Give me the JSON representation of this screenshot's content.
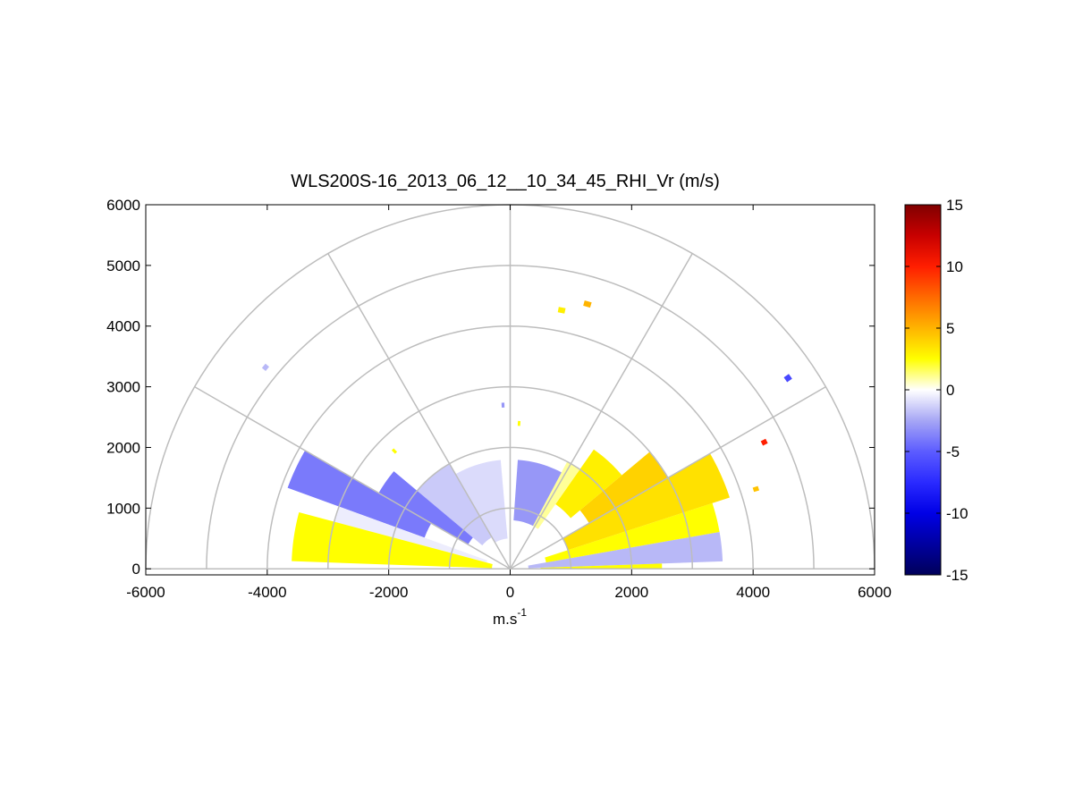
{
  "chart_data": {
    "type": "polar_rhi",
    "title": "WLS200S-16_2013_06_12__10_34_45_RHI_Vr (m/s)",
    "xlabel": {
      "base": "m.s",
      "superscript": "-1"
    },
    "xlim": [
      -6000,
      6000
    ],
    "xticks": [
      -6000,
      -4000,
      -2000,
      0,
      2000,
      4000,
      6000
    ],
    "ylim": [
      -100,
      6000
    ],
    "yticks": [
      0,
      1000,
      2000,
      3000,
      4000,
      5000,
      6000
    ],
    "polar_rings": [
      1000,
      2000,
      3000,
      4000,
      5000,
      6000
    ],
    "polar_spokes": [
      0,
      30,
      60,
      90,
      120,
      150,
      180
    ],
    "grid_color": "#bdbdbd",
    "clim": [
      -15,
      15
    ],
    "cticks": [
      -15,
      -10,
      -5,
      0,
      5,
      10,
      15
    ],
    "colormap": [
      "#00005a",
      "#0000a0",
      "#0000e6",
      "#2a2aff",
      "#5c5cff",
      "#a6a6f5",
      "#ffffff",
      "#ffff00",
      "#ffb400",
      "#ff6a00",
      "#ff1e00",
      "#c80000",
      "#800000"
    ],
    "cells": {
      "elevation_start": [
        0,
        2,
        10,
        18,
        30,
        40,
        55,
        62,
        95,
        120,
        140,
        150,
        160,
        165,
        73,
        78,
        34,
        26,
        17.5,
        140,
        92,
        134,
        86
      ],
      "elevation_end": [
        2,
        10,
        18,
        30,
        40,
        55,
        62,
        86,
        120,
        140,
        150,
        160,
        165,
        178,
        74.5,
        79.5,
        35,
        27,
        18.5,
        141,
        93,
        135,
        87
      ],
      "range_start": [
        500,
        300,
        600,
        1000,
        1500,
        1300,
        800,
        800,
        500,
        600,
        800,
        1500,
        400,
        300,
        4500,
        4300,
        5500,
        4630,
        4210,
        5180,
        2660,
        2680,
        2360
      ],
      "range_end": [
        2500,
        3500,
        3500,
        3800,
        3000,
        2400,
        2000,
        1800,
        1800,
        2000,
        2500,
        3900,
        3000,
        3600,
        4590,
        4390,
        5600,
        4720,
        4300,
        5260,
        2740,
        2760,
        2440
      ],
      "values": [
        2.5,
        -2,
        2.5,
        3.5,
        4,
        3,
        1,
        -3,
        -1,
        -1.5,
        -4,
        -4,
        -0.5,
        2.5,
        5,
        3,
        -6,
        10,
        4.5,
        -2,
        -3,
        2.5,
        2.5
      ]
    }
  }
}
